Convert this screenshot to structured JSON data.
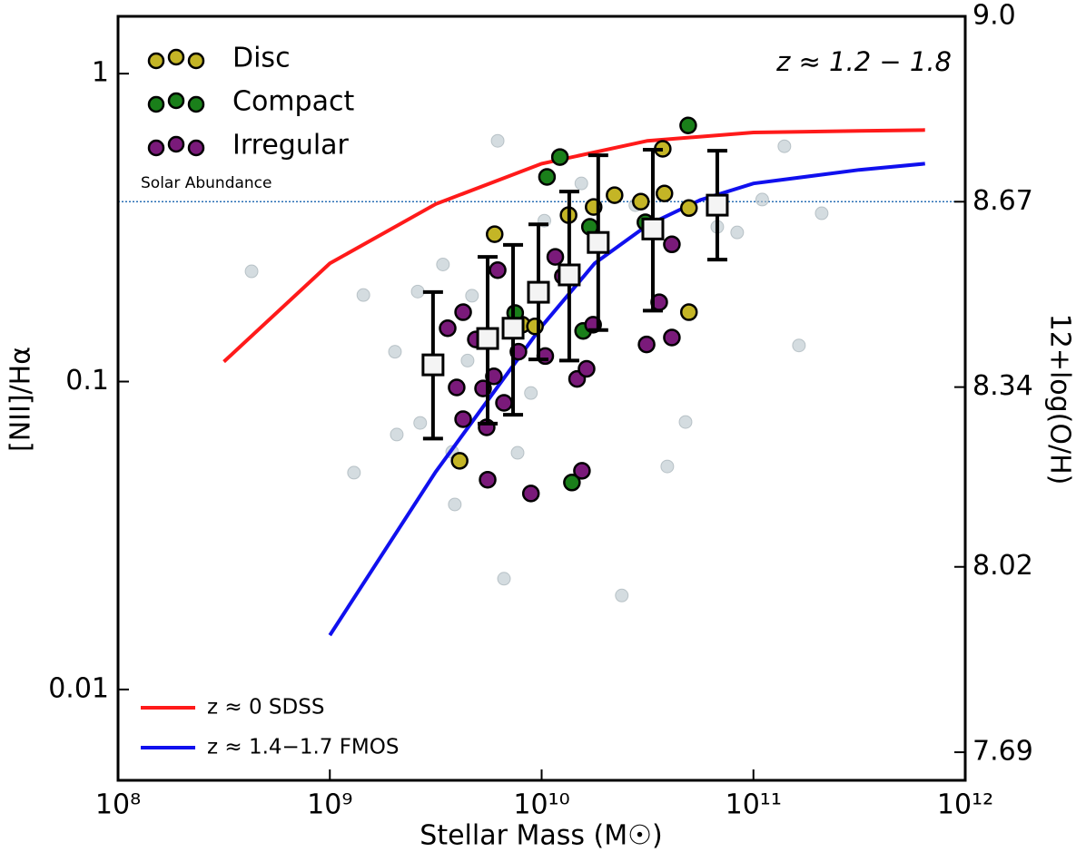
{
  "chart_data": {
    "type": "scatter",
    "xlabel": "Stellar Mass (M☉)",
    "ylabel": "[NII]/Hα",
    "y2label": "12+log(O/H)",
    "xscale": "log",
    "yscale": "log",
    "xlim": [
      100000000.0,
      1000000000000.0
    ],
    "xticks": [
      {
        "value": 100000000.0,
        "label": "10⁸"
      },
      {
        "value": 1000000000.0,
        "label": "10⁹"
      },
      {
        "value": 10000000000.0,
        "label": "10¹⁰"
      },
      {
        "value": 100000000000.0,
        "label": "10¹¹"
      },
      {
        "value": 1000000000000.0,
        "label": "10¹²"
      }
    ],
    "ylim": [
      0.00507,
      1.535
    ],
    "yticks": [
      0.01,
      0.1,
      1
    ],
    "y2lim": [
      7.64,
      9.0
    ],
    "y2ticks": [
      {
        "value": 9,
        "label": "9.0"
      },
      8.67,
      8.34,
      8.02,
      7.69
    ],
    "annotations": [
      {
        "text": "z ≈ 1.2 − 1.8"
      },
      {
        "text": "Solar Abundance",
        "value": 0.384,
        "color": "#2a6fb5"
      }
    ],
    "legend": "upper left",
    "series": [
      {
        "type": "scatter",
        "color": "#b8c4cc",
        "x": [
          427000000.0,
          1440000000.0,
          2030000000.0,
          2600000000.0,
          2670000000.0,
          3420000000.0,
          3780000000.0,
          3890000000.0,
          4470000000.0,
          4690000000.0,
          6200000000.0,
          6640000000.0,
          7700000000.0,
          8900000000.0,
          10300000000.0,
          15400000000.0,
          23900000000.0,
          27700000000.0,
          67500000000.0,
          83800000000.0,
          110000000000.0,
          140000000000.0,
          210000000000.0,
          164000000000.0,
          47800000000.0,
          39200000000.0,
          1300000000.0,
          2070000000.0
        ],
        "values": [
          0.228,
          0.191,
          0.125,
          0.196,
          0.0734,
          0.24,
          0.0591,
          0.0399,
          0.117,
          0.19,
          0.605,
          0.0229,
          0.0587,
          0.0918,
          0.333,
          0.44,
          0.0202,
          0.374,
          0.318,
          0.305,
          0.39,
          0.581,
          0.352,
          0.131,
          0.0739,
          0.053,
          0.0506,
          0.0673
        ]
      },
      {
        "type": "line",
        "name": "z ≈ 0 SDSS",
        "color": "#ff1a1a",
        "x": [
          316000000.0,
          1000000000.0,
          3160000000.0,
          10000000000.0,
          31600000000.0,
          100000000000.0,
          316000000000.0,
          646000000000.0
        ],
        "values": [
          0.116,
          0.242,
          0.377,
          0.51,
          0.605,
          0.644,
          0.652,
          0.656
        ]
      },
      {
        "type": "line",
        "name": "z ≈ 1.4−1.7 FMOS",
        "color": "#1010ee",
        "x": [
          1000000000.0,
          3160000000.0,
          10000000000.0,
          17800000000.0,
          31600000000.0,
          56200000000.0,
          100000000000.0,
          316000000000.0,
          646000000000.0
        ],
        "values": [
          0.015,
          0.0509,
          0.151,
          0.242,
          0.322,
          0.389,
          0.44,
          0.487,
          0.51
        ]
      },
      {
        "type": "points",
        "name": "Disc",
        "color": "#c4b526",
        "x": [
          6000000000.0,
          8100000000.0,
          9300000000.0,
          13400000000.0,
          17600000000.0,
          22100000000.0,
          29400000000.0,
          37300000000.0,
          38000000000.0,
          49600000000.0,
          49600000000.0,
          4100000000.0
        ],
        "values": [
          0.301,
          0.153,
          0.151,
          0.347,
          0.369,
          0.403,
          0.384,
          0.57,
          0.408,
          0.366,
          0.168,
          0.0553
        ]
      },
      {
        "type": "points",
        "name": "Compact",
        "color": "#1a7f1a",
        "x": [
          10600000000.0,
          12200000000.0,
          7500000000.0,
          16900000000.0,
          15700000000.0,
          30900000000.0,
          49200000000.0,
          13900000000.0
        ],
        "values": [
          0.462,
          0.536,
          0.167,
          0.318,
          0.146,
          0.329,
          0.679,
          0.047
        ]
      },
      {
        "type": "points",
        "name": "Irregular",
        "color": "#7a1a7a",
        "x": [
          3600000000.0,
          4260000000.0,
          4260000000.0,
          4890000000.0,
          5290000000.0,
          5500000000.0,
          5560000000.0,
          5950000000.0,
          6200000000.0,
          6640000000.0,
          7770000000.0,
          8900000000.0,
          10400000000.0,
          11600000000.0,
          12600000000.0,
          14700000000.0,
          15500000000.0,
          16300000000.0,
          17500000000.0,
          35900000000.0,
          41200000000.0,
          41200000000.0,
          31300000000.0,
          3970000000.0
        ],
        "values": [
          0.149,
          0.168,
          0.0755,
          0.137,
          0.095,
          0.071,
          0.048,
          0.104,
          0.23,
          0.0853,
          0.125,
          0.0433,
          0.121,
          0.254,
          0.22,
          0.102,
          0.0513,
          0.11,
          0.153,
          0.181,
          0.279,
          0.139,
          0.132,
          0.0957
        ]
      },
      {
        "type": "errorbar",
        "color": "#000000",
        "x": [
          3070000000.0,
          5560000000.0,
          7330000000.0,
          9660000000.0,
          13500000000.0,
          18500000000.0,
          33500000000.0,
          67500000000.0
        ],
        "values": [
          0.1133,
          0.138,
          0.149,
          0.195,
          0.222,
          0.283,
          0.313,
          0.374
        ],
        "err_minus": [
          0.048,
          0.065,
          0.071,
          0.077,
          0.105,
          0.136,
          0.143,
          0.125
        ],
        "err_plus": [
          0.082,
          0.116,
          0.129,
          0.129,
          0.192,
          0.26,
          0.253,
          0.188
        ]
      }
    ]
  }
}
